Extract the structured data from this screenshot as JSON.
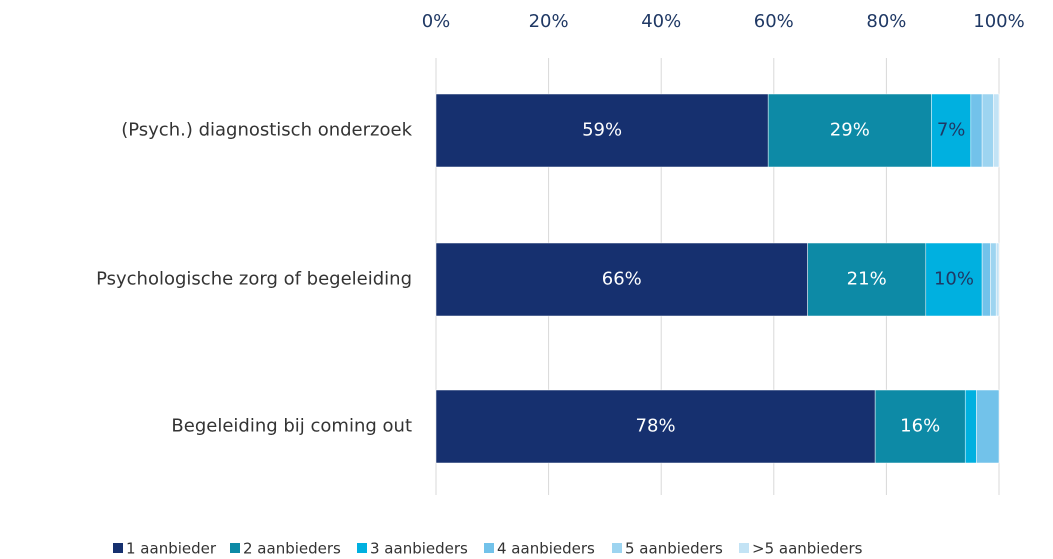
{
  "chart_data": {
    "type": "stacked_barh",
    "categories": [
      "(Psych.) diagnostisch onderzoek",
      "Psychologische zorg of begeleiding",
      "Begeleiding bij coming out"
    ],
    "series": [
      {
        "name": "1 aanbieder",
        "color": "#16306f",
        "values": [
          59,
          66,
          78
        ],
        "value_labels": [
          "59%",
          "66%",
          "78%"
        ]
      },
      {
        "name": "2 aanbieders",
        "color": "#0d8aa6",
        "values": [
          29,
          21,
          16
        ],
        "value_labels": [
          "29%",
          "21%",
          "16%"
        ]
      },
      {
        "name": "3 aanbieders",
        "color": "#00b0e0",
        "values": [
          7,
          10,
          2
        ],
        "value_labels": [
          "7%",
          "10%",
          null
        ]
      },
      {
        "name": "4 aanbieders",
        "color": "#72c2ea",
        "values": [
          2,
          1.5,
          4
        ]
      },
      {
        "name": "5 aanbieders",
        "color": "#9dd4f0",
        "values": [
          2,
          1,
          0
        ]
      },
      {
        "name": ">5 aanbieders",
        "color": "#c3e3f5",
        "values": [
          1,
          0.5,
          0
        ]
      }
    ],
    "xlim": [
      0,
      100
    ],
    "xticks": [
      {
        "value": 0,
        "label": "0%"
      },
      {
        "value": 20,
        "label": "20%"
      },
      {
        "value": 40,
        "label": "40%"
      },
      {
        "value": 60,
        "label": "60%"
      },
      {
        "value": 80,
        "label": "80%"
      },
      {
        "value": 100,
        "label": "100%"
      }
    ],
    "grid": true,
    "legend": "bottom"
  }
}
